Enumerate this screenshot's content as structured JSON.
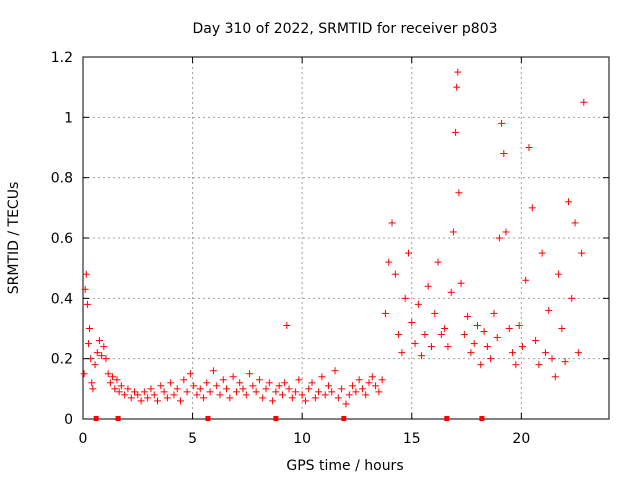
{
  "chart_data": {
    "type": "scatter",
    "title": "Day 310 of 2022, SRMTID for receiver p803",
    "xlabel": "GPS time / hours",
    "ylabel": "SRMTID / TECUs",
    "xlim": [
      0,
      24.0
    ],
    "ylim": [
      0,
      1.2
    ],
    "x_ticks": [
      0,
      5,
      10,
      15,
      20
    ],
    "y_ticks": [
      0,
      0.2,
      0.4,
      0.6,
      0.8,
      1.0,
      1.2
    ],
    "x_tick_labels": [
      "0",
      "5",
      "10",
      "15",
      "20"
    ],
    "y_tick_labels": [
      "0",
      "0.2",
      "0.4",
      "0.6",
      "0.8",
      "1",
      "1.2"
    ],
    "grid": true,
    "marker": "+",
    "color": "#ff0000",
    "series": [
      {
        "name": "SRMTID",
        "x": [
          0.05,
          0.1,
          0.15,
          0.2,
          0.25,
          0.3,
          0.35,
          0.4,
          0.45,
          0.55,
          0.65,
          0.75,
          0.85,
          0.95,
          1.05,
          1.15,
          1.25,
          1.35,
          1.45,
          1.55,
          1.65,
          1.75,
          1.9,
          2.05,
          2.2,
          2.35,
          2.5,
          2.65,
          2.8,
          2.95,
          3.1,
          3.25,
          3.4,
          3.55,
          3.7,
          3.85,
          4.0,
          4.15,
          4.3,
          4.45,
          4.6,
          4.75,
          4.9,
          5.05,
          5.2,
          5.35,
          5.5,
          5.65,
          5.8,
          5.95,
          6.1,
          6.25,
          6.4,
          6.55,
          6.7,
          6.85,
          7.0,
          7.15,
          7.3,
          7.45,
          7.6,
          7.75,
          7.9,
          8.05,
          8.2,
          8.35,
          8.5,
          8.65,
          8.8,
          8.95,
          9.1,
          9.2,
          9.3,
          9.4,
          9.55,
          9.7,
          9.85,
          10.0,
          10.15,
          10.3,
          10.45,
          10.6,
          10.75,
          10.9,
          11.05,
          11.2,
          11.35,
          11.5,
          11.65,
          11.8,
          12.0,
          12.15,
          12.3,
          12.45,
          12.6,
          12.75,
          12.9,
          13.05,
          13.2,
          13.35,
          13.5,
          13.65,
          13.8,
          13.95,
          14.1,
          14.25,
          14.4,
          14.55,
          14.7,
          14.85,
          15.0,
          15.15,
          15.3,
          15.45,
          15.6,
          15.75,
          15.9,
          16.05,
          16.2,
          16.35,
          16.5,
          16.65,
          16.8,
          16.9,
          17.0,
          17.05,
          17.1,
          17.15,
          17.25,
          17.4,
          17.55,
          17.7,
          17.85,
          18.0,
          18.15,
          18.3,
          18.45,
          18.6,
          18.75,
          18.9,
          19.0,
          19.1,
          19.2,
          19.3,
          19.45,
          19.6,
          19.75,
          19.9,
          20.05,
          20.2,
          20.35,
          20.5,
          20.65,
          20.8,
          20.95,
          21.1,
          21.25,
          21.4,
          21.55,
          21.7,
          21.85,
          22.0,
          22.15,
          22.3,
          22.45,
          22.6,
          22.75,
          22.85
        ],
        "y": [
          0.15,
          0.43,
          0.48,
          0.38,
          0.25,
          0.3,
          0.2,
          0.12,
          0.1,
          0.18,
          0.22,
          0.26,
          0.21,
          0.24,
          0.2,
          0.15,
          0.12,
          0.14,
          0.1,
          0.13,
          0.09,
          0.11,
          0.08,
          0.1,
          0.07,
          0.09,
          0.08,
          0.06,
          0.09,
          0.07,
          0.1,
          0.08,
          0.06,
          0.11,
          0.09,
          0.07,
          0.12,
          0.08,
          0.1,
          0.06,
          0.13,
          0.09,
          0.15,
          0.11,
          0.08,
          0.1,
          0.07,
          0.12,
          0.09,
          0.16,
          0.11,
          0.08,
          0.13,
          0.1,
          0.07,
          0.14,
          0.09,
          0.12,
          0.1,
          0.08,
          0.15,
          0.11,
          0.09,
          0.13,
          0.07,
          0.1,
          0.12,
          0.06,
          0.09,
          0.11,
          0.08,
          0.12,
          0.31,
          0.1,
          0.07,
          0.09,
          0.13,
          0.08,
          0.06,
          0.1,
          0.12,
          0.07,
          0.09,
          0.14,
          0.08,
          0.11,
          0.09,
          0.16,
          0.07,
          0.1,
          0.05,
          0.08,
          0.11,
          0.09,
          0.13,
          0.1,
          0.08,
          0.12,
          0.14,
          0.11,
          0.09,
          0.13,
          0.35,
          0.52,
          0.65,
          0.48,
          0.28,
          0.22,
          0.4,
          0.55,
          0.32,
          0.25,
          0.38,
          0.21,
          0.28,
          0.44,
          0.24,
          0.35,
          0.52,
          0.28,
          0.3,
          0.24,
          0.42,
          0.62,
          0.95,
          1.1,
          1.15,
          0.75,
          0.45,
          0.28,
          0.34,
          0.22,
          0.25,
          0.31,
          0.18,
          0.29,
          0.24,
          0.2,
          0.35,
          0.27,
          0.6,
          0.98,
          0.88,
          0.62,
          0.3,
          0.22,
          0.18,
          0.31,
          0.24,
          0.46,
          0.9,
          0.7,
          0.26,
          0.18,
          0.55,
          0.22,
          0.36,
          0.2,
          0.14,
          0.48,
          0.3,
          0.19,
          0.72,
          0.4,
          0.65,
          0.22,
          0.55,
          1.05
        ]
      }
    ],
    "baseline_markers_x": [
      0.6,
      1.6,
      5.7,
      8.8,
      11.9,
      16.6,
      18.2
    ]
  }
}
